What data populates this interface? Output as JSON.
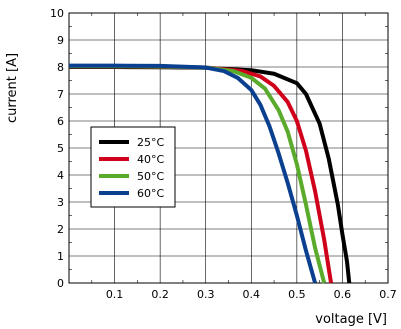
{
  "chart_data": {
    "type": "line",
    "xlabel": "voltage [V]",
    "ylabel": "current [A]",
    "xlim": [
      0,
      0.7
    ],
    "ylim": [
      0,
      10
    ],
    "x_ticks": [
      "0.1",
      "0.2",
      "0.3",
      "0.4",
      "0.5",
      "0.6",
      "0.7"
    ],
    "y_ticks": [
      "0",
      "1",
      "2",
      "3",
      "4",
      "5",
      "6",
      "7",
      "8",
      "9",
      "10"
    ],
    "grid": true,
    "legend_position": "left",
    "series": [
      {
        "name": "25°C",
        "color": "#000000",
        "x": [
          0,
          0.1,
          0.2,
          0.3,
          0.4,
          0.45,
          0.5,
          0.52,
          0.55,
          0.57,
          0.59,
          0.6,
          0.61,
          0.615
        ],
        "y": [
          8.0,
          8.0,
          7.99,
          7.97,
          7.88,
          7.75,
          7.4,
          7.0,
          5.9,
          4.6,
          2.9,
          1.8,
          0.8,
          0
        ]
      },
      {
        "name": "40°C",
        "color": "#d0021b",
        "x": [
          0,
          0.1,
          0.2,
          0.3,
          0.38,
          0.42,
          0.45,
          0.48,
          0.5,
          0.52,
          0.54,
          0.56,
          0.575
        ],
        "y": [
          8.02,
          8.02,
          8.01,
          7.98,
          7.85,
          7.65,
          7.3,
          6.7,
          6.0,
          4.9,
          3.4,
          1.6,
          0
        ]
      },
      {
        "name": "50°C",
        "color": "#5aaa2c",
        "x": [
          0,
          0.1,
          0.2,
          0.3,
          0.36,
          0.4,
          0.43,
          0.46,
          0.48,
          0.5,
          0.52,
          0.54,
          0.56
        ],
        "y": [
          8.03,
          8.03,
          8.02,
          7.98,
          7.85,
          7.6,
          7.2,
          6.4,
          5.6,
          4.4,
          2.9,
          1.3,
          0
        ]
      },
      {
        "name": "60°C",
        "color": "#0b3f8f",
        "x": [
          0,
          0.1,
          0.2,
          0.3,
          0.34,
          0.37,
          0.4,
          0.42,
          0.44,
          0.46,
          0.48,
          0.5,
          0.52,
          0.54
        ],
        "y": [
          8.05,
          8.05,
          8.04,
          7.98,
          7.85,
          7.6,
          7.15,
          6.6,
          5.8,
          4.8,
          3.7,
          2.5,
          1.2,
          0
        ]
      }
    ]
  }
}
